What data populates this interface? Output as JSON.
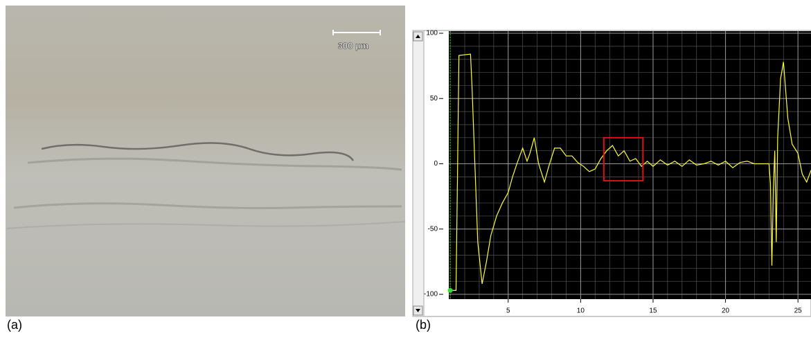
{
  "panel_a": {
    "label": "(a)",
    "scale_bar": "300 µm"
  },
  "chart_data": {
    "type": "line",
    "label": "(b)",
    "x": [
      1.0,
      1.4,
      1.5,
      1.6,
      2.4,
      2.5,
      2.9,
      3.2,
      3.5,
      3.8,
      4.2,
      4.6,
      5.0,
      5.3,
      5.6,
      6.0,
      6.3,
      6.5,
      6.8,
      7.1,
      7.5,
      7.8,
      8.2,
      8.6,
      9.0,
      9.4,
      9.8,
      10.2,
      10.6,
      11.0,
      11.4,
      11.8,
      12.2,
      12.6,
      13.0,
      13.4,
      13.8,
      14.2,
      14.6,
      15.0,
      15.5,
      16.0,
      16.5,
      17.0,
      17.5,
      18.0,
      18.5,
      19.0,
      19.5,
      20.0,
      20.5,
      21.0,
      21.5,
      22.0,
      22.5,
      23.0,
      23.1,
      23.2,
      23.3,
      23.4,
      23.5,
      23.6,
      23.8,
      24.0,
      24.3,
      24.6,
      25.0,
      25.3,
      25.6,
      25.9
    ],
    "series": [
      {
        "color": "#ffff33",
        "values": [
          -97,
          -97,
          -10,
          83,
          84,
          60,
          -60,
          -92,
          -75,
          -55,
          -40,
          -30,
          -22,
          -10,
          0,
          12,
          2,
          8,
          20,
          0,
          -14,
          -2,
          12,
          12,
          6,
          6,
          1,
          -2,
          -6,
          -4,
          4,
          10,
          14,
          6,
          10,
          2,
          4,
          -2,
          2,
          -2,
          3,
          -1,
          2,
          -2,
          3,
          -1,
          0,
          2,
          -1,
          2,
          -3,
          1,
          2,
          0,
          0,
          0,
          -15,
          -78,
          -20,
          10,
          -60,
          20,
          65,
          78,
          35,
          15,
          8,
          -8,
          -14,
          -5
        ]
      }
    ],
    "xlim": [
      0.9,
      25.9
    ],
    "ylim": [
      -103.7,
      101.6
    ],
    "xticks": [
      5,
      10,
      15,
      20,
      25
    ],
    "yticks": [
      -100,
      -50,
      0,
      50,
      100
    ],
    "grid": true,
    "grid_step": [
      1,
      10
    ],
    "highlight": {
      "x": [
        11.6,
        14.3
      ],
      "y": [
        -13,
        20
      ],
      "color": "#e01010"
    },
    "marker": {
      "x": 1.0,
      "y": -97,
      "color": "#33dd33"
    }
  }
}
